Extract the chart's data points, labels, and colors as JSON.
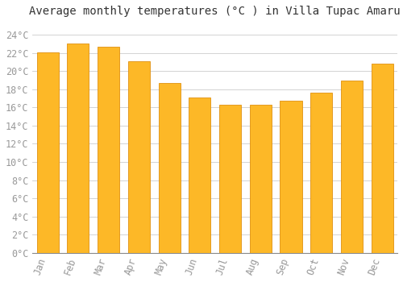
{
  "title": "Average monthly temperatures (°C ) in Villa Tupac Amaru",
  "months": [
    "Jan",
    "Feb",
    "Mar",
    "Apr",
    "May",
    "Jun",
    "Jul",
    "Aug",
    "Sep",
    "Oct",
    "Nov",
    "Dec"
  ],
  "values": [
    22.1,
    23.0,
    22.7,
    21.1,
    18.7,
    17.1,
    16.3,
    16.3,
    16.7,
    17.6,
    19.0,
    20.8
  ],
  "bar_color": "#FDB827",
  "bar_edge_color": "#E09010",
  "background_color": "#FFFFFF",
  "grid_color": "#CCCCCC",
  "ytick_labels": [
    "0°C",
    "2°C",
    "4°C",
    "6°C",
    "8°C",
    "10°C",
    "12°C",
    "14°C",
    "16°C",
    "18°C",
    "20°C",
    "22°C",
    "24°C"
  ],
  "ytick_values": [
    0,
    2,
    4,
    6,
    8,
    10,
    12,
    14,
    16,
    18,
    20,
    22,
    24
  ],
  "ylim": [
    0,
    25.5
  ],
  "title_fontsize": 10,
  "tick_fontsize": 8.5,
  "tick_color": "#999999",
  "title_color": "#333333",
  "bar_width": 0.72,
  "figsize": [
    5.0,
    3.5
  ],
  "dpi": 100
}
